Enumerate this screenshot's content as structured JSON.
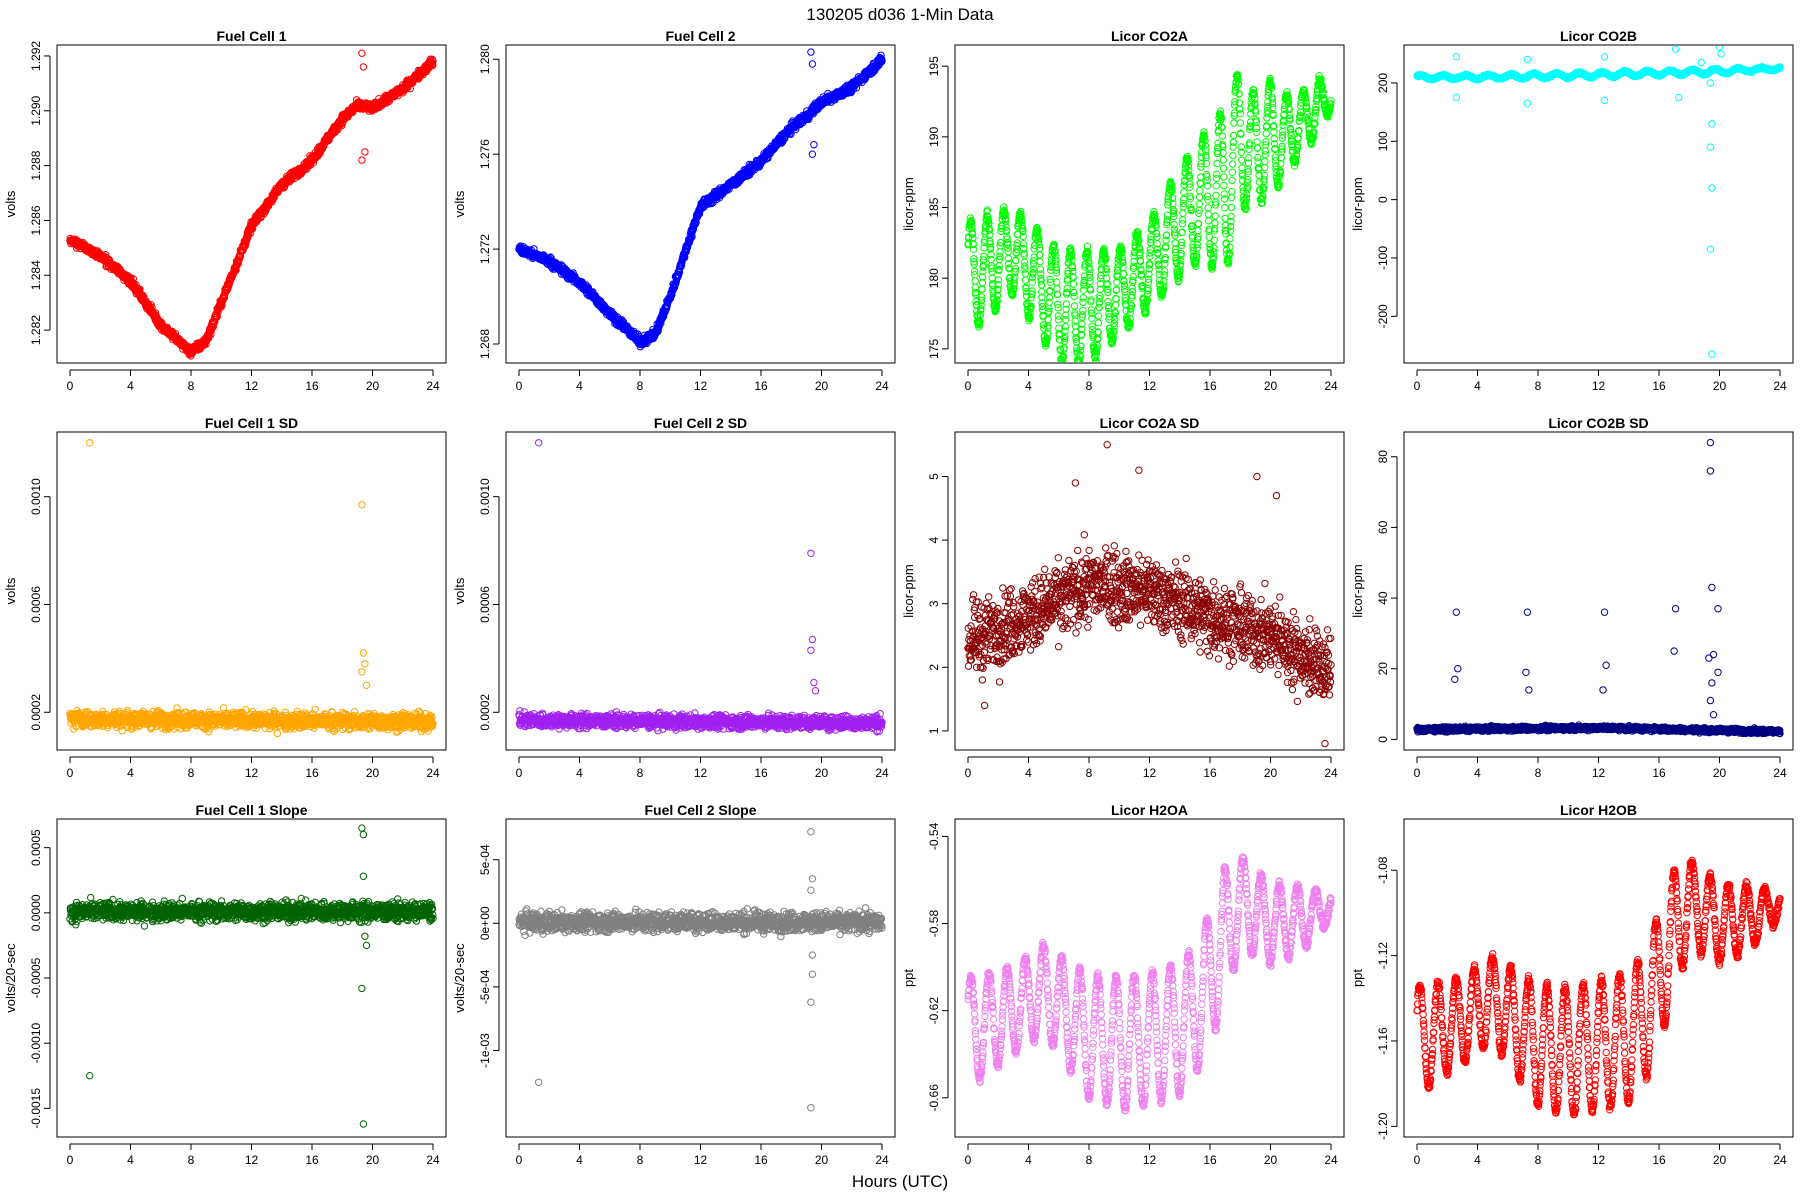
{
  "figure": {
    "title": "130205    d036    1-Min Data",
    "xlabel": "Hours (UTC)"
  },
  "chart_data": [
    {
      "type": "scatter",
      "title": "Fuel Cell 1",
      "ylabel": "volts",
      "xlim": [
        0,
        24
      ],
      "xticks": [
        "0",
        "4",
        "8",
        "12",
        "16",
        "20",
        "24"
      ],
      "ylim": [
        1.2808,
        1.2924
      ],
      "yticks": [
        "1.282",
        "1.284",
        "1.286",
        "1.288",
        "1.290",
        "1.292"
      ],
      "color": "#ff0000",
      "series": {
        "x": [
          0,
          2,
          4,
          6,
          8,
          9,
          10,
          12,
          14,
          16,
          18,
          19,
          20,
          22,
          24
        ],
        "y": [
          1.2853,
          1.2847,
          1.2838,
          1.2822,
          1.2812,
          1.2816,
          1.283,
          1.2858,
          1.2873,
          1.2882,
          1.2897,
          1.2902,
          1.2901,
          1.2908,
          1.2918
        ],
        "noise": 0.00015
      },
      "outliers": [
        [
          19.3,
          1.2921
        ],
        [
          19.4,
          1.2916
        ],
        [
          19.5,
          1.2885
        ],
        [
          19.3,
          1.2882
        ]
      ]
    },
    {
      "type": "scatter",
      "title": "Fuel Cell 2",
      "ylabel": "volts",
      "xlim": [
        0,
        24
      ],
      "xticks": [
        "0",
        "4",
        "8",
        "12",
        "16",
        "20",
        "24"
      ],
      "ylim": [
        1.2672,
        1.2806
      ],
      "yticks": [
        "1.268",
        "1.272",
        "1.276",
        "1.280"
      ],
      "color": "#0000ff",
      "series": {
        "x": [
          0,
          2,
          4,
          6,
          8,
          9,
          10,
          12,
          14,
          16,
          18,
          19,
          20,
          22,
          24
        ],
        "y": [
          1.272,
          1.2715,
          1.2706,
          1.2693,
          1.2681,
          1.2684,
          1.27,
          1.2738,
          1.2747,
          1.2757,
          1.2771,
          1.2776,
          1.2782,
          1.2788,
          1.28
        ],
        "noise": 0.00018
      },
      "outliers": [
        [
          19.3,
          1.2803
        ],
        [
          19.4,
          1.2798
        ],
        [
          19.5,
          1.2764
        ],
        [
          19.4,
          1.276
        ]
      ]
    },
    {
      "type": "scatter",
      "title": "Licor CO2A",
      "ylabel": "licor-ppm",
      "xlim": [
        0,
        24
      ],
      "xticks": [
        "0",
        "4",
        "8",
        "12",
        "16",
        "20",
        "24"
      ],
      "ylim": [
        174,
        196.5
      ],
      "yticks": [
        "175",
        "180",
        "185",
        "190",
        "195"
      ],
      "color": "#00ff00",
      "series": {
        "x": [
          0,
          3,
          6,
          8,
          10,
          12,
          14,
          15,
          16,
          17,
          18,
          19,
          20,
          21,
          22,
          23,
          24
        ],
        "y": [
          180,
          182,
          178,
          178,
          179,
          181,
          184,
          185,
          186,
          186,
          190,
          189,
          190,
          190,
          191,
          192,
          193
        ],
        "amp": [
          4,
          3,
          4,
          4,
          3,
          3,
          4,
          4,
          5,
          6,
          5,
          4,
          4,
          3,
          2,
          2,
          1
        ],
        "period": 1.1,
        "noise": 0.3
      },
      "outliers": []
    },
    {
      "type": "scatter",
      "title": "Licor CO2B",
      "ylabel": "licor-ppm",
      "xlim": [
        0,
        24
      ],
      "xticks": [
        "0",
        "4",
        "8",
        "12",
        "16",
        "20",
        "24"
      ],
      "ylim": [
        -280,
        265
      ],
      "yticks": [
        "-200",
        "-100",
        "0",
        "100",
        "200"
      ],
      "color": "#00ffff",
      "series": {
        "x": [
          0,
          4,
          8,
          12,
          16,
          20,
          24
        ],
        "y": [
          210,
          210,
          212,
          214,
          217,
          220,
          225
        ],
        "amp": [
          3,
          3,
          4,
          4,
          4,
          4,
          2
        ],
        "period": 1.5,
        "noise": 1.5
      },
      "outliers": [
        [
          2.6,
          245
        ],
        [
          2.6,
          175
        ],
        [
          7.3,
          240
        ],
        [
          7.3,
          165
        ],
        [
          12.4,
          245
        ],
        [
          12.4,
          170
        ],
        [
          17.1,
          258
        ],
        [
          17.3,
          175
        ],
        [
          19.4,
          200
        ],
        [
          19.5,
          130
        ],
        [
          19.4,
          90
        ],
        [
          19.5,
          20
        ],
        [
          19.4,
          -85
        ],
        [
          19.5,
          -265
        ],
        [
          20.0,
          262
        ],
        [
          20.1,
          250
        ],
        [
          18.8,
          235
        ]
      ]
    },
    {
      "type": "scatter",
      "title": "Fuel Cell 1 SD",
      "ylabel": "volts",
      "xlim": [
        0,
        24
      ],
      "xticks": [
        "0",
        "4",
        "8",
        "12",
        "16",
        "20",
        "24"
      ],
      "ylim": [
        6e-05,
        0.00124
      ],
      "yticks": [
        "0.0002",
        "0.0006",
        "0.0010"
      ],
      "color": "#ffa500",
      "series": {
        "x": [
          0,
          24
        ],
        "y": [
          0.000175,
          0.000165
        ],
        "noise": 3e-05
      },
      "outliers": [
        [
          1.3,
          0.0012
        ],
        [
          19.3,
          0.00097
        ],
        [
          19.4,
          0.00042
        ],
        [
          19.5,
          0.00038
        ],
        [
          19.3,
          0.00035
        ],
        [
          19.6,
          0.0003
        ]
      ]
    },
    {
      "type": "scatter",
      "title": "Fuel Cell 2 SD",
      "ylabel": "volts",
      "xlim": [
        0,
        24
      ],
      "xticks": [
        "0",
        "4",
        "8",
        "12",
        "16",
        "20",
        "24"
      ],
      "ylim": [
        6e-05,
        0.00124
      ],
      "yticks": [
        "0.0002",
        "0.0006",
        "0.0010"
      ],
      "color": "#a020f0",
      "series": {
        "x": [
          0,
          24
        ],
        "y": [
          0.00017,
          0.00016
        ],
        "noise": 2.5e-05
      },
      "outliers": [
        [
          1.3,
          0.0012
        ],
        [
          19.3,
          0.00079
        ],
        [
          19.4,
          0.00047
        ],
        [
          19.3,
          0.00043
        ],
        [
          19.5,
          0.00031
        ],
        [
          19.6,
          0.00028
        ]
      ]
    },
    {
      "type": "scatter",
      "title": "Licor CO2A SD",
      "ylabel": "licor-ppm",
      "xlim": [
        0,
        24
      ],
      "xticks": [
        "0",
        "4",
        "8",
        "12",
        "16",
        "20",
        "24"
      ],
      "ylim": [
        0.7,
        5.7
      ],
      "yticks": [
        "1",
        "2",
        "3",
        "4",
        "5"
      ],
      "color": "#8b0000",
      "series": {
        "x": [
          0,
          4,
          8,
          12,
          16,
          20,
          24
        ],
        "y": [
          2.4,
          2.8,
          3.3,
          3.2,
          2.8,
          2.5,
          1.9
        ],
        "noise": 0.55
      },
      "outliers": [
        [
          9.2,
          5.5
        ],
        [
          11.3,
          5.1
        ],
        [
          19.1,
          5.0
        ],
        [
          20.4,
          4.7
        ],
        [
          7.1,
          4.9
        ],
        [
          23.6,
          0.8
        ],
        [
          1.1,
          1.4
        ]
      ]
    },
    {
      "type": "scatter",
      "title": "Licor CO2B SD",
      "ylabel": "licor-ppm",
      "xlim": [
        0,
        24
      ],
      "xticks": [
        "0",
        "4",
        "8",
        "12",
        "16",
        "20",
        "24"
      ],
      "ylim": [
        -3,
        87
      ],
      "yticks": [
        "0",
        "20",
        "40",
        "60",
        "80"
      ],
      "color": "#000080",
      "series": {
        "x": [
          0,
          12,
          24
        ],
        "y": [
          2.8,
          3.3,
          2.2
        ],
        "noise": 0.6
      },
      "outliers": [
        [
          2.6,
          36
        ],
        [
          2.7,
          20
        ],
        [
          2.5,
          17
        ],
        [
          7.3,
          36
        ],
        [
          7.2,
          19
        ],
        [
          7.4,
          14
        ],
        [
          12.4,
          36
        ],
        [
          12.5,
          21
        ],
        [
          12.3,
          14
        ],
        [
          17.1,
          37
        ],
        [
          17.0,
          25
        ],
        [
          19.4,
          84
        ],
        [
          19.4,
          76
        ],
        [
          19.5,
          43
        ],
        [
          19.6,
          24
        ],
        [
          19.3,
          23
        ],
        [
          19.5,
          16
        ],
        [
          19.4,
          11
        ],
        [
          19.6,
          7
        ],
        [
          19.9,
          37
        ],
        [
          19.9,
          19
        ]
      ]
    },
    {
      "type": "scatter",
      "title": "Fuel Cell 1 Slope",
      "ylabel": "volts/20-sec",
      "xlim": [
        0,
        24
      ],
      "xticks": [
        "0",
        "4",
        "8",
        "12",
        "16",
        "20",
        "24"
      ],
      "ylim": [
        -0.00172,
        0.00072
      ],
      "yticks": [
        "-0.0015",
        "-0.0010",
        "-0.0005",
        "0.0000",
        "0.0005"
      ],
      "color": "#006400",
      "series": {
        "x": [
          0,
          24
        ],
        "y": [
          1e-05,
          1e-05
        ],
        "noise": 7e-05
      },
      "outliers": [
        [
          1.3,
          -0.00125
        ],
        [
          19.3,
          0.00065
        ],
        [
          19.4,
          0.0006
        ],
        [
          19.4,
          0.00028
        ],
        [
          19.3,
          -0.00058
        ],
        [
          19.4,
          -0.00162
        ],
        [
          19.6,
          -0.00025
        ],
        [
          19.5,
          -0.00018
        ]
      ]
    },
    {
      "type": "scatter",
      "title": "Fuel Cell 2 Slope",
      "ylabel": "volts/20-sec",
      "xlim": [
        0,
        24
      ],
      "xticks": [
        "0",
        "4",
        "8",
        "12",
        "16",
        "20",
        "24"
      ],
      "ylim": [
        -0.00168,
        0.00082
      ],
      "yticks": [
        "-1e-03",
        "-5e-04",
        "0e+00",
        "5e-04"
      ],
      "color": "#808080",
      "series": {
        "x": [
          0,
          24
        ],
        "y": [
          1e-05,
          1e-05
        ],
        "noise": 7.5e-05
      },
      "outliers": [
        [
          1.3,
          -0.00125
        ],
        [
          19.3,
          0.00072
        ],
        [
          19.4,
          0.00035
        ],
        [
          19.3,
          0.00026
        ],
        [
          19.4,
          -0.00025
        ],
        [
          19.4,
          -0.0004
        ],
        [
          19.3,
          -0.00062
        ],
        [
          19.3,
          -0.00145
        ]
      ]
    },
    {
      "type": "scatter",
      "title": "Licor H2OA",
      "ylabel": "ppt",
      "xlim": [
        0,
        24
      ],
      "xticks": [
        "0",
        "4",
        "8",
        "12",
        "16",
        "20",
        "24"
      ],
      "ylim": [
        -0.678,
        -0.532
      ],
      "yticks": [
        "-0.66",
        "-0.62",
        "-0.58",
        "-0.54"
      ],
      "color": "#ee82ee",
      "series": {
        "x": [
          0,
          3,
          5,
          8,
          10,
          12,
          14,
          15,
          16,
          17,
          18,
          19,
          20,
          22,
          24
        ],
        "y": [
          -0.63,
          -0.62,
          -0.61,
          -0.632,
          -0.635,
          -0.633,
          -0.628,
          -0.62,
          -0.605,
          -0.585,
          -0.57,
          -0.575,
          -0.58,
          -0.578,
          -0.572
        ],
        "amp": [
          0.025,
          0.02,
          0.02,
          0.028,
          0.03,
          0.03,
          0.03,
          0.03,
          0.03,
          0.03,
          0.02,
          0.02,
          0.018,
          0.015,
          0.006
        ],
        "period": 1.2,
        "noise": 0.002
      },
      "outliers": []
    },
    {
      "type": "scatter",
      "title": "Licor H2OB",
      "ylabel": "ppt",
      "xlim": [
        0,
        24
      ],
      "xticks": [
        "0",
        "4",
        "8",
        "12",
        "16",
        "20",
        "24"
      ],
      "ylim": [
        -1.205,
        -1.056
      ],
      "yticks": [
        "-1.20",
        "-1.16",
        "-1.12",
        "-1.08"
      ],
      "color": "#ff0000",
      "series": {
        "x": [
          0,
          3,
          5,
          8,
          10,
          12,
          14,
          15,
          16,
          17,
          18,
          19,
          20,
          22,
          24
        ],
        "y": [
          -1.16,
          -1.15,
          -1.14,
          -1.162,
          -1.165,
          -1.162,
          -1.158,
          -1.15,
          -1.13,
          -1.11,
          -1.095,
          -1.1,
          -1.105,
          -1.102,
          -1.096
        ],
        "amp": [
          0.025,
          0.02,
          0.02,
          0.028,
          0.03,
          0.03,
          0.03,
          0.03,
          0.03,
          0.03,
          0.02,
          0.02,
          0.018,
          0.015,
          0.006
        ],
        "period": 1.2,
        "noise": 0.002
      },
      "outliers": []
    }
  ]
}
